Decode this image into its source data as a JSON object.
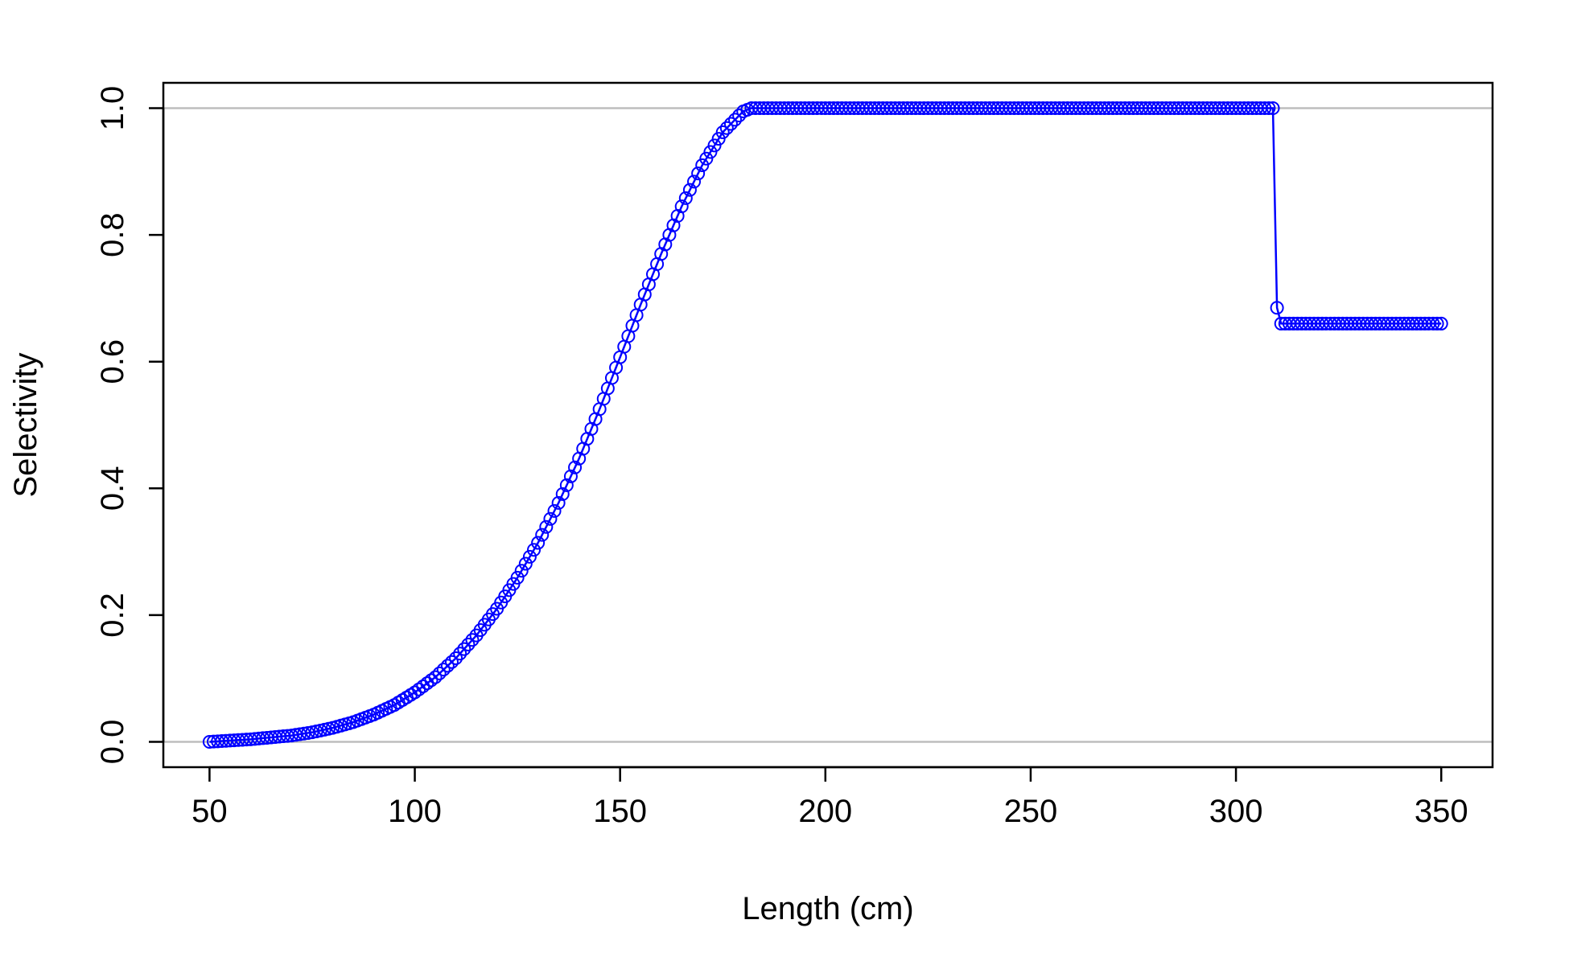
{
  "chart_data": {
    "type": "scatter",
    "title": "",
    "xlabel": "Length (cm)",
    "ylabel": "Selectivity",
    "xlim": [
      38.75,
      362.5
    ],
    "ylim": [
      -0.04,
      1.04
    ],
    "x_ticks": [
      50,
      100,
      150,
      200,
      250,
      300,
      350
    ],
    "y_ticks": [
      0.0,
      0.2,
      0.4,
      0.6,
      0.8,
      1.0
    ],
    "x_tick_labels": [
      "50",
      "100",
      "150",
      "200",
      "250",
      "300",
      "350"
    ],
    "y_tick_labels": [
      "0.0",
      "0.2",
      "0.4",
      "0.6",
      "0.8",
      "1.0"
    ],
    "reference_lines_y": [
      0,
      1
    ],
    "grid": false,
    "legend": "none",
    "series": [
      {
        "x_start": 50,
        "x_end": 350,
        "x_step": 1,
        "points": [
          [
            50,
            0.0
          ],
          [
            55,
            0.002
          ],
          [
            60,
            0.004
          ],
          [
            65,
            0.007
          ],
          [
            70,
            0.01
          ],
          [
            75,
            0.015
          ],
          [
            80,
            0.022
          ],
          [
            85,
            0.031
          ],
          [
            90,
            0.043
          ],
          [
            95,
            0.058
          ],
          [
            100,
            0.078
          ],
          [
            105,
            0.102
          ],
          [
            110,
            0.132
          ],
          [
            115,
            0.168
          ],
          [
            120,
            0.21
          ],
          [
            125,
            0.259
          ],
          [
            130,
            0.314
          ],
          [
            135,
            0.377
          ],
          [
            140,
            0.447
          ],
          [
            145,
            0.525
          ],
          [
            150,
            0.607
          ],
          [
            155,
            0.69
          ],
          [
            160,
            0.77
          ],
          [
            165,
            0.845
          ],
          [
            170,
            0.91
          ],
          [
            175,
            0.962
          ],
          [
            180,
            0.995
          ],
          [
            182,
            1.0
          ],
          [
            309,
            1.0
          ],
          [
            310,
            0.685
          ],
          [
            311,
            0.66
          ],
          [
            350,
            0.66
          ]
        ]
      }
    ],
    "colors": {
      "series": "#0000ff",
      "reference_line": "#bebebe",
      "axis": "#000000"
    }
  }
}
